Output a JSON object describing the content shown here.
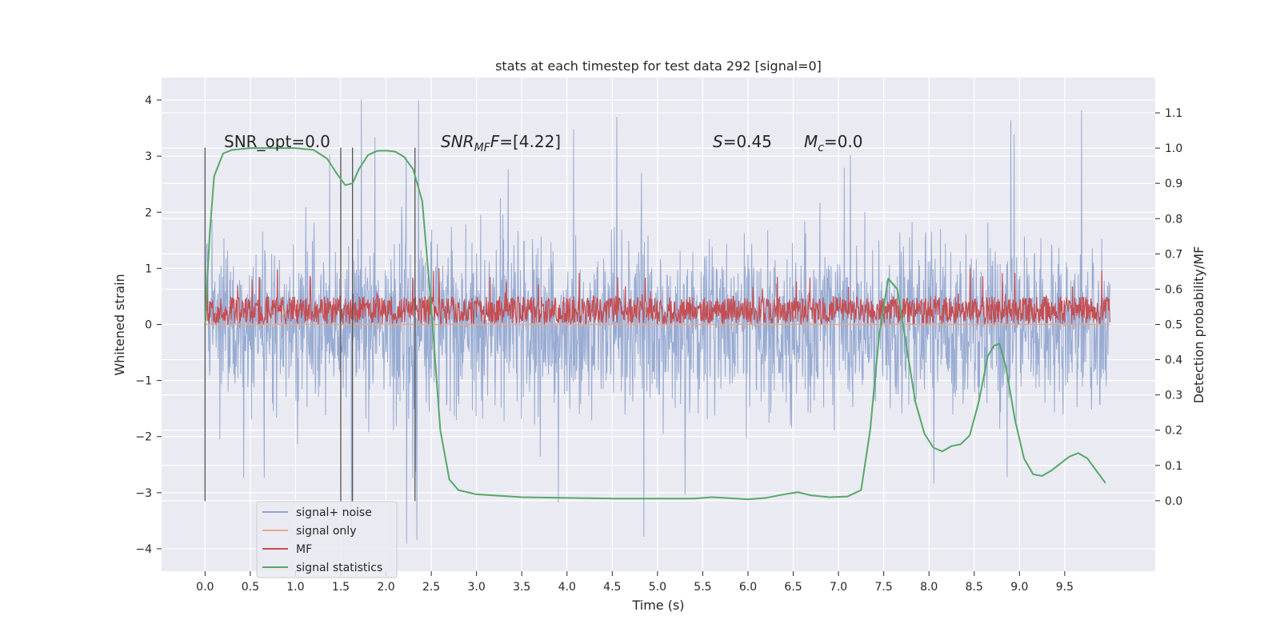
{
  "chart_data": {
    "type": "line",
    "title": "stats at each timestep for test data 292 [signal=0]",
    "xlabel": "Time (s)",
    "ylabel": "Whitened strain",
    "y2label": "Detection probability/MF",
    "xlim": [
      -0.48,
      10.5
    ],
    "ylim": [
      -4.4,
      4.4
    ],
    "y2lim": [
      -0.2,
      1.2
    ],
    "xticks": [
      "0.0",
      "0.5",
      "1.0",
      "1.5",
      "2.0",
      "2.5",
      "3.0",
      "3.5",
      "4.0",
      "4.5",
      "5.0",
      "5.5",
      "6.0",
      "6.5",
      "7.0",
      "7.5",
      "8.0",
      "8.5",
      "9.0",
      "9.5"
    ],
    "yticks": [
      "4",
      "3",
      "2",
      "1",
      "0",
      "−1",
      "−2",
      "−3",
      "−4"
    ],
    "y2ticks": [
      "1.1",
      "1.0",
      "0.9",
      "0.8",
      "0.7",
      "0.6",
      "0.5",
      "0.4",
      "0.3",
      "0.2",
      "0.1",
      "0.0"
    ],
    "grid": true,
    "legend_position": "lower-left",
    "annotations": {
      "snr_opt": "SNR_opt=0.0",
      "snr_mf_base": "SNR",
      "snr_mf_sub": "MF",
      "snr_mf_val": "=[4.22]",
      "s_label": "S",
      "s_val": "=0.45",
      "mc_base": "M",
      "mc_sub": "c",
      "mc_val": "=0.0"
    },
    "vertical_markers_x": [
      0.0,
      1.5,
      1.63,
      2.32
    ],
    "vertical_markers_y": [
      -3.15,
      3.15
    ],
    "series": [
      {
        "name": "signal+ noise",
        "color": "#8fa4ce",
        "x_range": [
          0.0,
          10.0
        ],
        "noise_envelope": {
          "typical_max": 1.8,
          "typical_min": -1.6,
          "peak_max": 4.05,
          "peak_min": -4.2
        }
      },
      {
        "name": "signal only",
        "color": "#e8a98c",
        "x": [
          0.0,
          10.0
        ],
        "y": [
          0.0,
          0.0
        ]
      },
      {
        "name": "MF",
        "color": "#c44e52",
        "axis": "right",
        "x_range": [
          0.0,
          10.0
        ],
        "band": {
          "min": 0.5,
          "typical_max": 0.58,
          "peak": 0.66
        }
      },
      {
        "name": "signal statistics",
        "color": "#55a868",
        "axis": "right",
        "x": [
          0.0,
          0.05,
          0.1,
          0.2,
          0.3,
          0.5,
          0.8,
          1.0,
          1.2,
          1.35,
          1.45,
          1.55,
          1.63,
          1.7,
          1.8,
          1.9,
          2.0,
          2.1,
          2.2,
          2.3,
          2.4,
          2.5,
          2.6,
          2.7,
          2.8,
          3.0,
          3.5,
          4.0,
          4.5,
          5.0,
          5.4,
          5.6,
          5.8,
          6.0,
          6.2,
          6.4,
          6.55,
          6.7,
          6.9,
          7.1,
          7.25,
          7.35,
          7.45,
          7.55,
          7.65,
          7.75,
          7.85,
          7.95,
          8.05,
          8.15,
          8.25,
          8.35,
          8.45,
          8.55,
          8.65,
          8.72,
          8.78,
          8.85,
          8.95,
          9.05,
          9.15,
          9.25,
          9.35,
          9.45,
          9.55,
          9.65,
          9.75,
          9.85,
          9.95
        ],
        "y": [
          0.5,
          0.75,
          0.92,
          0.985,
          0.995,
          1.0,
          1.0,
          1.0,
          0.995,
          0.97,
          0.93,
          0.895,
          0.9,
          0.94,
          0.98,
          0.992,
          0.993,
          0.99,
          0.975,
          0.94,
          0.85,
          0.55,
          0.2,
          0.06,
          0.03,
          0.018,
          0.01,
          0.008,
          0.006,
          0.006,
          0.006,
          0.01,
          0.007,
          0.004,
          0.008,
          0.018,
          0.024,
          0.015,
          0.01,
          0.012,
          0.03,
          0.2,
          0.47,
          0.63,
          0.6,
          0.44,
          0.28,
          0.19,
          0.15,
          0.14,
          0.155,
          0.16,
          0.185,
          0.28,
          0.41,
          0.44,
          0.445,
          0.38,
          0.23,
          0.12,
          0.075,
          0.07,
          0.085,
          0.105,
          0.125,
          0.135,
          0.12,
          0.085,
          0.05
        ]
      }
    ]
  }
}
